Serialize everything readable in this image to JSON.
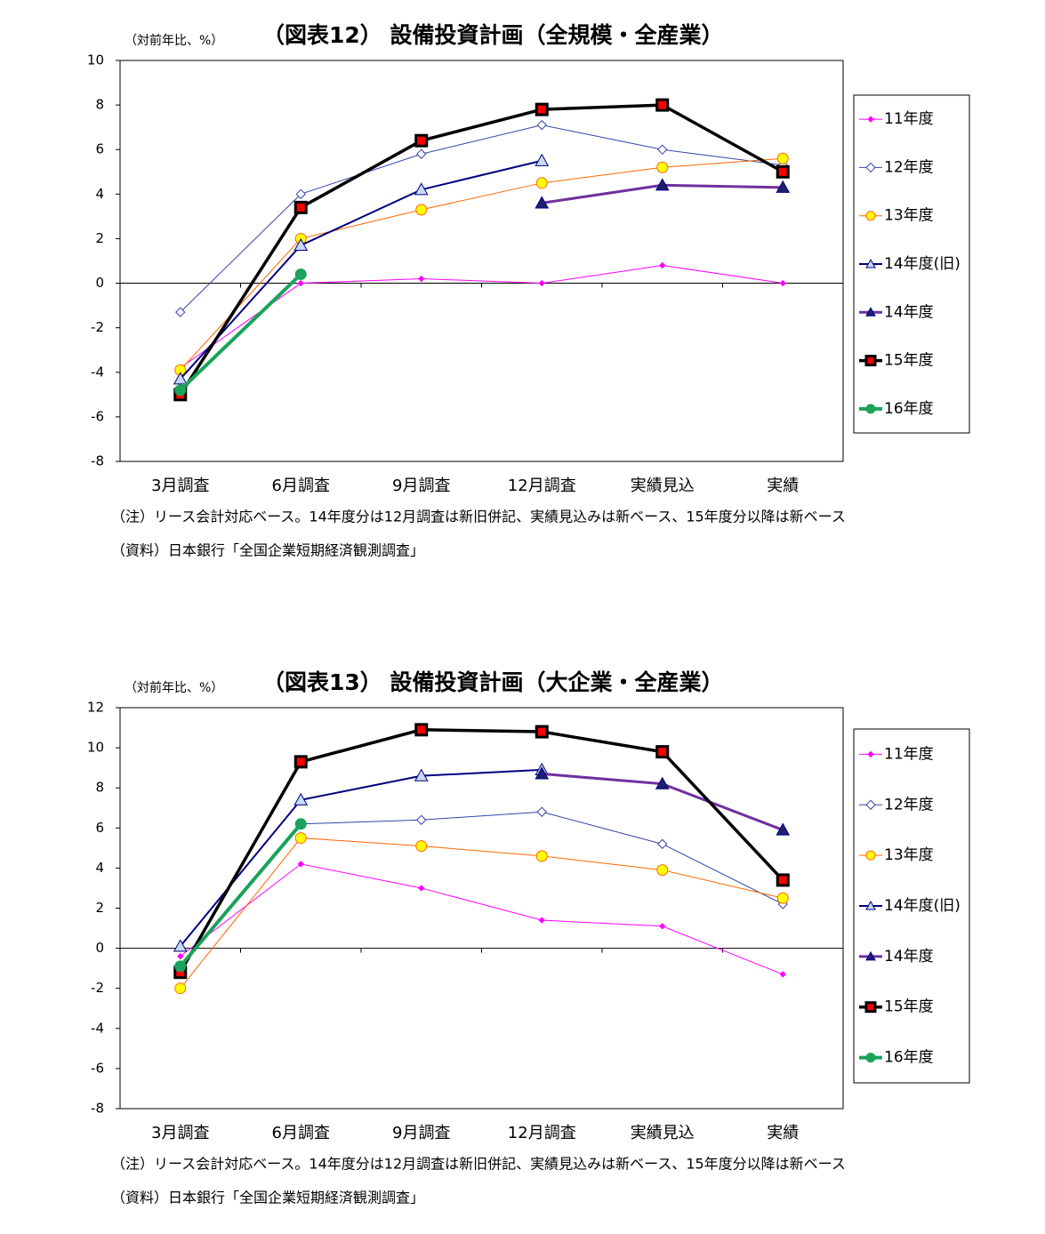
{
  "chart_data": [
    {
      "type": "line",
      "title": "（図表12） 設備投資計画（全規模・全産業）",
      "y_unit_label": "（対前年比、%）",
      "categories": [
        "3月調査",
        "6月調査",
        "9月調査",
        "12月調査",
        "実績見込",
        "実績"
      ],
      "ylim": [
        -8,
        10
      ],
      "yticks": [
        -8,
        -6,
        -4,
        -2,
        0,
        2,
        4,
        6,
        8,
        10
      ],
      "series": [
        {
          "name": "11年度",
          "color": "#ff00ff",
          "marker": "diamond",
          "marker_fill": "#ff00ff",
          "values": [
            -3.8,
            0,
            0.2,
            0,
            0.8,
            0
          ]
        },
        {
          "name": "12年度",
          "color": "#3344aa",
          "marker": "diamond",
          "marker_fill": "#ffffff",
          "values": [
            -1.3,
            4.0,
            5.8,
            7.1,
            6.0,
            5.3
          ]
        },
        {
          "name": "13年度",
          "color": "#ff6600",
          "marker": "circle",
          "marker_fill": "#ffff00",
          "values": [
            -3.9,
            2.0,
            3.3,
            4.5,
            5.2,
            5.6
          ]
        },
        {
          "name": "14年度(旧)",
          "color": "#000080",
          "marker": "triangle",
          "marker_fill": "#c6d9f1",
          "values": [
            -4.3,
            1.7,
            4.2,
            5.5,
            null,
            null
          ]
        },
        {
          "name": "14年度",
          "color": "#7030a0",
          "marker": "triangle",
          "marker_fill": "#1f1f6e",
          "values": [
            null,
            null,
            null,
            3.6,
            4.4,
            4.3
          ]
        },
        {
          "name": "15年度",
          "color": "#000000",
          "marker": "square",
          "marker_fill": "#ff0000",
          "values": [
            -5.0,
            3.4,
            6.4,
            7.8,
            8.0,
            5.0
          ]
        },
        {
          "name": "16年度",
          "color": "#1aa35a",
          "marker": "circle",
          "marker_fill": "#1aa35a",
          "values": [
            -4.8,
            0.4,
            null,
            null,
            null,
            null
          ]
        }
      ],
      "note": "（注）リース会計対応ベース。14年度分は12月調査は新旧併記、実績見込みは新ベース、15年度分以降は新ベース",
      "source": "（資料）日本銀行「全国企業短期経済観測調査」"
    },
    {
      "type": "line",
      "title": "（図表13） 設備投資計画（大企業・全産業）",
      "y_unit_label": "（対前年比、%）",
      "categories": [
        "3月調査",
        "6月調査",
        "9月調査",
        "12月調査",
        "実績見込",
        "実績"
      ],
      "ylim": [
        -8,
        12
      ],
      "yticks": [
        -8,
        -6,
        -4,
        -2,
        0,
        2,
        4,
        6,
        8,
        10,
        12
      ],
      "series": [
        {
          "name": "11年度",
          "color": "#ff00ff",
          "marker": "diamond",
          "marker_fill": "#ff00ff",
          "values": [
            -0.4,
            4.2,
            3.0,
            1.4,
            1.1,
            -1.3
          ]
        },
        {
          "name": "12年度",
          "color": "#3344aa",
          "marker": "diamond",
          "marker_fill": "#ffffff",
          "values": [
            -0.9,
            6.2,
            6.4,
            6.8,
            5.2,
            2.2
          ]
        },
        {
          "name": "13年度",
          "color": "#ff6600",
          "marker": "circle",
          "marker_fill": "#ffff00",
          "values": [
            -2.0,
            5.5,
            5.1,
            4.6,
            3.9,
            2.5
          ]
        },
        {
          "name": "14年度(旧)",
          "color": "#000080",
          "marker": "triangle",
          "marker_fill": "#c6d9f1",
          "values": [
            0.1,
            7.4,
            8.6,
            8.9,
            null,
            null
          ]
        },
        {
          "name": "14年度",
          "color": "#7030a0",
          "marker": "triangle",
          "marker_fill": "#1f1f6e",
          "values": [
            null,
            null,
            null,
            8.7,
            8.2,
            5.9
          ]
        },
        {
          "name": "15年度",
          "color": "#000000",
          "marker": "square",
          "marker_fill": "#ff0000",
          "values": [
            -1.2,
            9.3,
            10.9,
            10.8,
            9.8,
            3.4
          ]
        },
        {
          "name": "16年度",
          "color": "#1aa35a",
          "marker": "circle",
          "marker_fill": "#1aa35a",
          "values": [
            -0.9,
            6.2,
            null,
            null,
            null,
            null
          ]
        }
      ],
      "note": "（注）リース会計対応ベース。14年度分は12月調査は新旧併記、実績見込みは新ベース、15年度分以降は新ベース",
      "source": "（資料）日本銀行「全国企業短期経済観測調査」"
    }
  ]
}
